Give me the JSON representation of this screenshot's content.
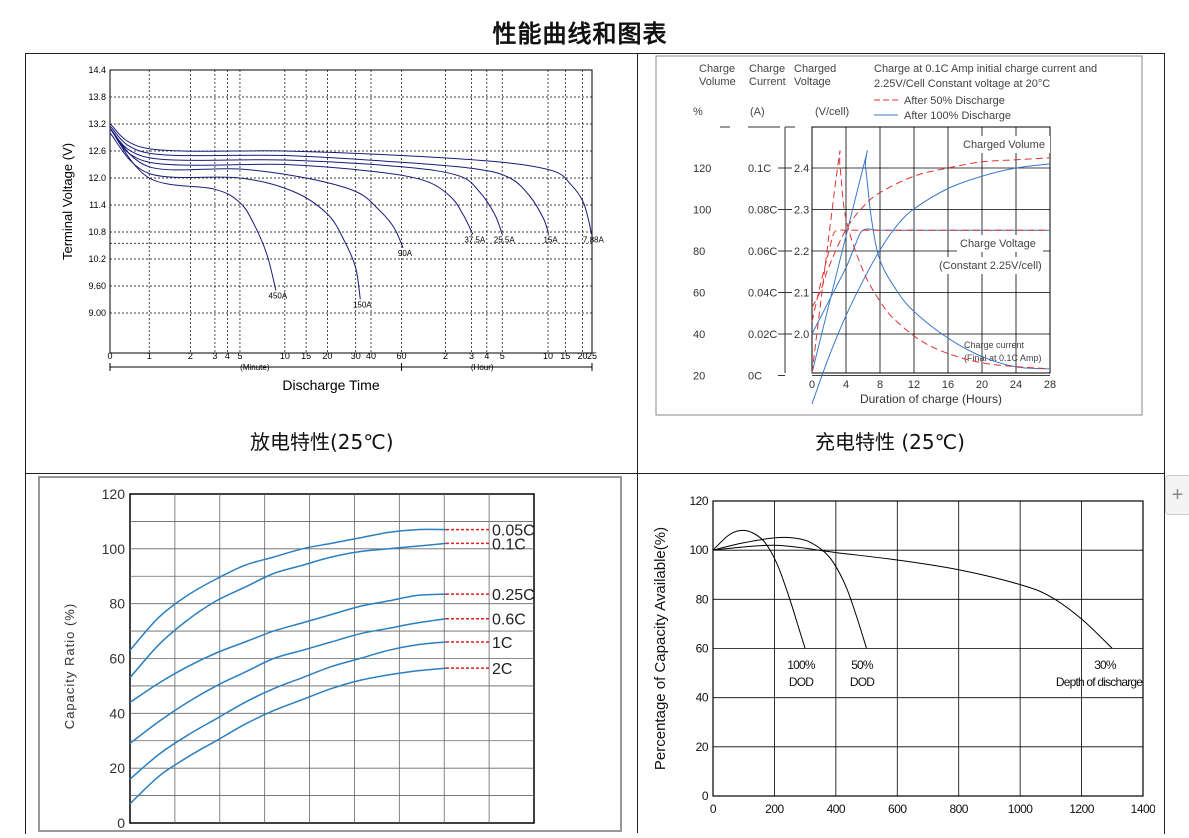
{
  "page": {
    "title": "性能曲线和图表",
    "caption_discharge": "放电特性(25℃)",
    "caption_charge": "充电特性  (25℃)",
    "plus_label": "+"
  },
  "chart_data": [
    {
      "type": "line",
      "ylabel": "Terminal  Voltage (V)",
      "xlabel": "Discharge Time",
      "y_ticks": [
        "14.4",
        "13.8",
        "13.2",
        "12.6",
        "12.0",
        "11.4",
        "10.8",
        "10.2",
        "9.60",
        "9.00"
      ],
      "x_ticks": [
        "0",
        "1",
        "2",
        "3",
        "4",
        "5",
        "10",
        "15",
        "20",
        "30",
        "40",
        "60",
        "2",
        "3",
        "4",
        "5",
        "10",
        "15",
        "20",
        "25"
      ],
      "x_unit_minute": "(Minute)",
      "x_unit_hour": "(Hour)",
      "series": [
        {
          "name": "450A",
          "x_min": [
            0,
            1,
            3,
            5,
            6.5,
            8,
            9
          ],
          "y": [
            13.1,
            12.0,
            11.75,
            11.45,
            11.0,
            10.3,
            9.5
          ]
        },
        {
          "name": "150A",
          "x_min": [
            0,
            1,
            5,
            12,
            20,
            26,
            30,
            33
          ],
          "y": [
            13.0,
            12.1,
            12.0,
            11.7,
            11.2,
            10.6,
            10.0,
            9.3
          ]
        },
        {
          "name": "90A",
          "x_min": [
            0,
            1,
            5,
            15,
            30,
            45,
            55,
            62
          ],
          "y": [
            13.1,
            12.25,
            12.2,
            12.0,
            11.7,
            11.3,
            10.9,
            10.45
          ]
        },
        {
          "name": "37.5A",
          "x_min": [
            0,
            1,
            10,
            40,
            90,
            130,
            160,
            185
          ],
          "y": [
            13.1,
            12.35,
            12.3,
            12.15,
            11.95,
            11.6,
            11.2,
            10.75
          ]
        },
        {
          "name": "25.5A",
          "x_min": [
            0,
            1,
            10,
            60,
            150,
            210,
            270,
            300
          ],
          "y": [
            13.1,
            12.45,
            12.4,
            12.25,
            12.05,
            11.7,
            11.2,
            10.75
          ]
        },
        {
          "name": "15A",
          "x_min": [
            0,
            1,
            10,
            60,
            200,
            350,
            480,
            570,
            610
          ],
          "y": [
            13.15,
            12.55,
            12.5,
            12.35,
            12.2,
            12.0,
            11.6,
            11.1,
            10.75
          ]
        },
        {
          "name": "7.88A",
          "x_min": [
            0,
            1,
            10,
            60,
            300,
            700,
            1000,
            1200,
            1380,
            1480
          ],
          "y": [
            13.2,
            12.65,
            12.6,
            12.5,
            12.35,
            12.15,
            11.85,
            11.5,
            11.1,
            10.75
          ]
        }
      ]
    },
    {
      "type": "line",
      "xlabel": "Duration of charge (Hours)",
      "headers": {
        "charge_volume": [
          "Charge",
          "Volume"
        ],
        "charge_current": [
          "Charge",
          "Current"
        ],
        "charged_voltage": [
          "Charged",
          "Voltage"
        ]
      },
      "units": {
        "volume": "%",
        "current": "(A)",
        "voltage": "(V/cell)"
      },
      "note": [
        "Charge at 0.1C Amp initial charge current and",
        "2.25V/Cell Constant voltage at 20°C"
      ],
      "legend": [
        "After 50% Discharge",
        "After 100% Discharge"
      ],
      "y_volume_ticks": [
        "120",
        "100",
        "80",
        "60",
        "40",
        "20"
      ],
      "y_current_ticks": [
        "0.1C",
        "0.08C",
        "0.06C",
        "0.04C",
        "0.02C",
        "0C"
      ],
      "y_voltage_ticks": [
        "2.4",
        "2.3",
        "2.2",
        "2.1",
        "2.0"
      ],
      "x_ticks": [
        "0",
        "4",
        "8",
        "12",
        "16",
        "20",
        "24",
        "28"
      ],
      "labels": {
        "charged_volume": "Charged Volume",
        "charge_voltage": "Charge Voltage",
        "constant": "(Constant 2.25V/cell)",
        "charge_current": "Charge current",
        "final": "(Final at 0.1C Amp)"
      },
      "series": [
        {
          "name": "After 100% Discharge - Charged Volume",
          "x": [
            0,
            2,
            4,
            6,
            8,
            10,
            12,
            16,
            20,
            24,
            28
          ],
          "volume": [
            5,
            28,
            48,
            65,
            80,
            92,
            100,
            110,
            116,
            120,
            122
          ]
        },
        {
          "name": "After 100% Discharge - Charge Voltage",
          "x": [
            0,
            2,
            4,
            5,
            6,
            8,
            12,
            20,
            28
          ],
          "voltage": [
            2.0,
            2.08,
            2.16,
            2.21,
            2.25,
            2.25,
            2.25,
            2.25,
            2.25
          ]
        },
        {
          "name": "After 100% Discharge - Charge Current",
          "x": [
            0,
            6,
            6.3,
            7,
            8,
            10,
            12,
            16,
            20,
            24,
            28
          ],
          "current": [
            0,
            0.1,
            0.1,
            0.075,
            0.055,
            0.04,
            0.03,
            0.017,
            0.008,
            0.003,
            0.002
          ]
        },
        {
          "name": "After 50% Discharge - Charged Volume",
          "x": [
            0,
            1,
            2,
            4,
            6,
            8,
            12,
            16,
            20,
            24,
            28
          ],
          "volume": [
            52,
            60,
            72,
            90,
            101,
            108,
            116,
            120,
            123,
            124,
            125
          ]
        },
        {
          "name": "After 50% Discharge - Charge Voltage",
          "x": [
            0,
            1,
            2,
            2.5,
            3,
            4,
            8,
            16,
            28
          ],
          "voltage": [
            2.03,
            2.12,
            2.2,
            2.24,
            2.25,
            2.25,
            2.25,
            2.25,
            2.25
          ]
        },
        {
          "name": "After 50% Discharge - Charge Current",
          "x": [
            0,
            3,
            3.3,
            4,
            6,
            8,
            10,
            14,
            20,
            28
          ],
          "current": [
            0,
            0.1,
            0.1,
            0.075,
            0.05,
            0.035,
            0.025,
            0.013,
            0.005,
            0.002
          ]
        }
      ]
    },
    {
      "type": "line",
      "ylabel": "Capacity  Ratio (%)",
      "y_ticks": [
        "120",
        "100",
        "80",
        "60",
        "40",
        "20",
        "0"
      ],
      "ylim": [
        0,
        120
      ],
      "series": [
        {
          "name": "0.05C",
          "y": [
            63,
            75,
            83,
            89,
            94,
            97,
            100,
            102,
            104,
            106,
            107,
            107
          ]
        },
        {
          "name": "0.1C",
          "y": [
            53,
            65,
            74,
            81,
            86,
            91,
            94,
            97,
            99,
            100,
            101,
            102
          ]
        },
        {
          "name": "0.25C",
          "y": [
            44,
            51,
            57,
            62,
            66,
            70,
            73,
            76,
            79,
            81,
            83,
            83.5
          ]
        },
        {
          "name": "0.6C",
          "y": [
            29,
            37,
            44,
            50,
            55,
            60,
            63,
            66,
            69,
            71,
            73,
            74.5
          ]
        },
        {
          "name": "1C",
          "y": [
            16,
            25,
            32,
            38,
            44,
            49,
            53,
            57,
            60,
            63,
            65,
            66
          ]
        },
        {
          "name": "2C",
          "y": [
            7,
            17,
            24,
            30,
            36,
            41,
            45,
            49,
            52,
            54,
            55.5,
            56.5
          ]
        }
      ]
    },
    {
      "type": "line",
      "ylabel": "Percentage of Capacity Available(%)",
      "x_ticks": [
        "0",
        "200",
        "400",
        "600",
        "800",
        "1000",
        "1200",
        "1400"
      ],
      "y_ticks": [
        "120",
        "100",
        "80",
        "60",
        "40",
        "20",
        "0"
      ],
      "xlim": [
        0,
        1400
      ],
      "ylim": [
        0,
        120
      ],
      "labels": [
        [
          "100%",
          "DOD"
        ],
        [
          "50%",
          "DOD"
        ],
        [
          "30%",
          "Depth of discharge"
        ]
      ],
      "series": [
        {
          "name": "100% DOD",
          "x": [
            0,
            50,
            90,
            130,
            170,
            210,
            250,
            280,
            300
          ],
          "y": [
            100,
            106,
            108,
            107,
            103,
            94,
            80,
            68,
            60
          ]
        },
        {
          "name": "50% DOD",
          "x": [
            0,
            100,
            200,
            260,
            320,
            380,
            430,
            470,
            500
          ],
          "y": [
            100,
            103,
            105,
            105,
            103,
            97,
            86,
            72,
            60
          ]
        },
        {
          "name": "30% DOD",
          "x": [
            0,
            200,
            400,
            600,
            800,
            1000,
            1100,
            1200,
            1300
          ],
          "y": [
            100,
            102,
            99,
            96,
            92,
            86,
            81,
            72,
            60
          ]
        }
      ]
    }
  ]
}
